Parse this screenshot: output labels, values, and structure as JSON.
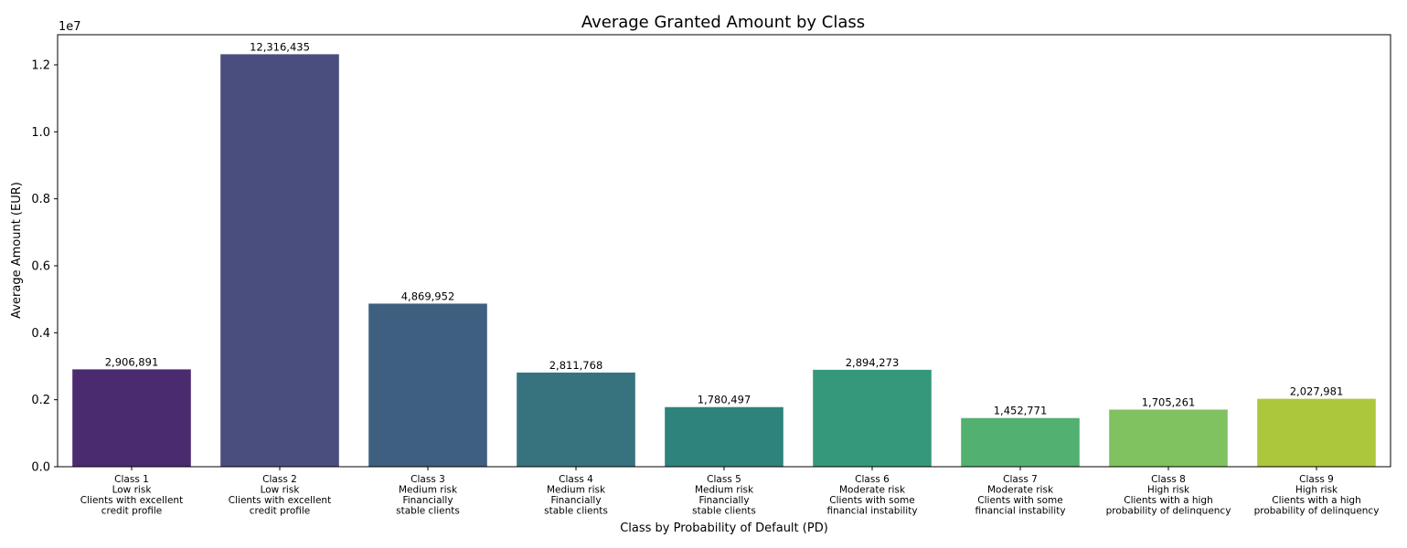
{
  "chart_data": {
    "type": "bar",
    "title": "Average Granted Amount by Class",
    "xlabel": "Class by Probability of Default (PD)",
    "ylabel": "Average Amount (EUR)",
    "y_scale_label": "1e7",
    "ylim": [
      0,
      12900000
    ],
    "y_ticks": [
      0,
      2000000,
      4000000,
      6000000,
      8000000,
      10000000,
      12000000
    ],
    "y_tick_labels": [
      "0.0",
      "0.2",
      "0.4",
      "0.6",
      "0.8",
      "1.0",
      "1.2"
    ],
    "grid": false,
    "categories": [
      [
        "Class 1",
        "Low risk",
        "Clients with excellent",
        "credit profile"
      ],
      [
        "Class 2",
        "Low risk",
        "Clients with excellent",
        "credit profile"
      ],
      [
        "Class 3",
        "Medium risk",
        "Financially",
        "stable clients"
      ],
      [
        "Class 4",
        "Medium risk",
        "Financially",
        "stable clients"
      ],
      [
        "Class 5",
        "Medium risk",
        "Financially",
        "stable clients"
      ],
      [
        "Class 6",
        "Moderate risk",
        "Clients with some",
        "financial instability"
      ],
      [
        "Class 7",
        "Moderate risk",
        "Clients with some",
        "financial instability"
      ],
      [
        "Class 8",
        "High risk",
        "Clients with a high",
        "probability of delinquency"
      ],
      [
        "Class 9",
        "High risk",
        "Clients with a high",
        "probability of delinquency"
      ]
    ],
    "values": [
      2906891,
      12316435,
      4869952,
      2811768,
      1780497,
      2894273,
      1452771,
      1705261,
      2027981
    ],
    "data_labels": [
      "2,906,891",
      "12,316,435",
      "4,869,952",
      "2,811,768",
      "1,780,497",
      "2,894,273",
      "1,452,771",
      "1,705,261",
      "2,027,981"
    ],
    "colors": [
      "#4b2b6f",
      "#4a4e7f",
      "#3e5f80",
      "#37737f",
      "#2e837c",
      "#35987b",
      "#52b070",
      "#80c160",
      "#acc73c"
    ]
  }
}
